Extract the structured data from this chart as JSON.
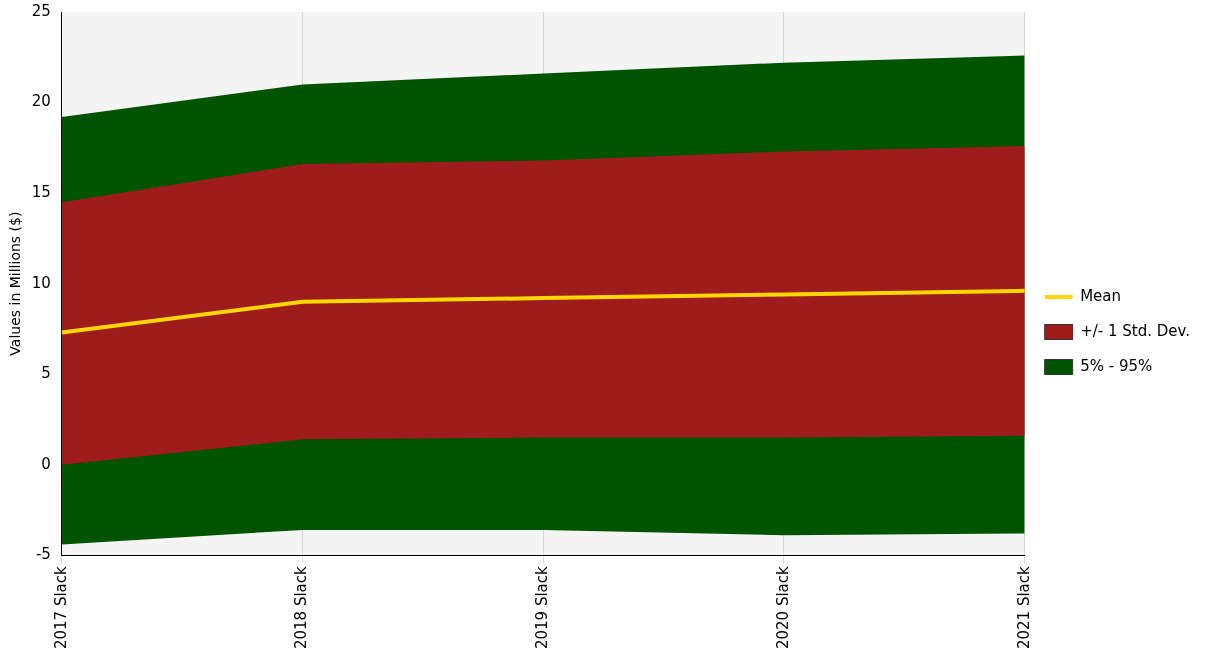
{
  "chart_data": {
    "type": "area",
    "ylabel": "Values in Millions ($)",
    "categories": [
      "2017 Slack",
      "2018 Slack",
      "2019 Slack",
      "2020 Slack",
      "2021 Slack"
    ],
    "series": [
      {
        "name": "Mean",
        "type": "line",
        "color": "#ffd700",
        "values": [
          7.3,
          9.0,
          9.2,
          9.4,
          9.6
        ]
      },
      {
        "name": "+/- 1 Std. Dev.",
        "type": "area",
        "color": "#9e1c1c",
        "values": [
          null,
          null,
          null,
          null,
          null
        ],
        "lower": [
          0.0,
          1.4,
          1.5,
          1.5,
          1.6
        ],
        "upper": [
          14.5,
          16.6,
          16.8,
          17.3,
          17.6
        ]
      },
      {
        "name": "5% - 95%",
        "type": "area",
        "color": "#005400",
        "values": [
          null,
          null,
          null,
          null,
          null
        ],
        "lower": [
          -4.4,
          -3.6,
          -3.6,
          -3.9,
          -3.8
        ],
        "upper": [
          19.2,
          21.0,
          21.6,
          22.2,
          22.6
        ]
      }
    ],
    "ylim": [
      -5,
      25
    ],
    "yticks": [
      -5,
      0,
      5,
      10,
      15,
      20,
      25
    ],
    "grid": "x",
    "legend": "right",
    "marker": "none"
  }
}
